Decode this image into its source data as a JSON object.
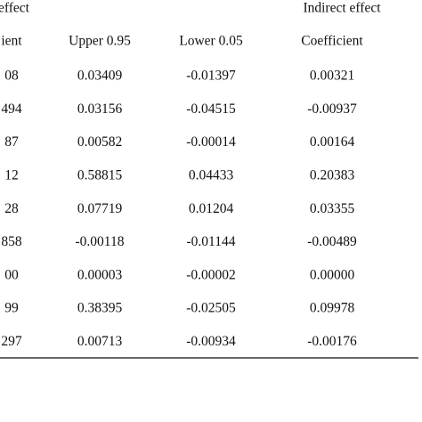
{
  "table": {
    "group_headers": [
      "effect",
      "Indirect effect"
    ],
    "headers": [
      "ient",
      "Upper 0.95",
      "Lower 0.05",
      "Coefficient"
    ],
    "rows": [
      [
        "08",
        "0.03409",
        "-0.01397",
        "0.00321"
      ],
      [
        "494",
        "0.03156",
        "-0.04515",
        "-0.00937"
      ],
      [
        "87",
        "0.00582",
        "-0.00014",
        "0.00164"
      ],
      [
        "12",
        "0.58815",
        "0.04433",
        "0.20383"
      ],
      [
        "28",
        "0.07719",
        "0.01204",
        "0.03355"
      ],
      [
        "858",
        "-0.00118",
        "-0.01144",
        "-0.00489"
      ],
      [
        "00",
        "0.00003",
        "-0.00002",
        "0.00000"
      ],
      [
        "99",
        "0.38395",
        "-0.02505",
        "0.09978"
      ],
      [
        "297",
        "0.00713",
        "-0.00934",
        "-0.00176"
      ]
    ]
  }
}
